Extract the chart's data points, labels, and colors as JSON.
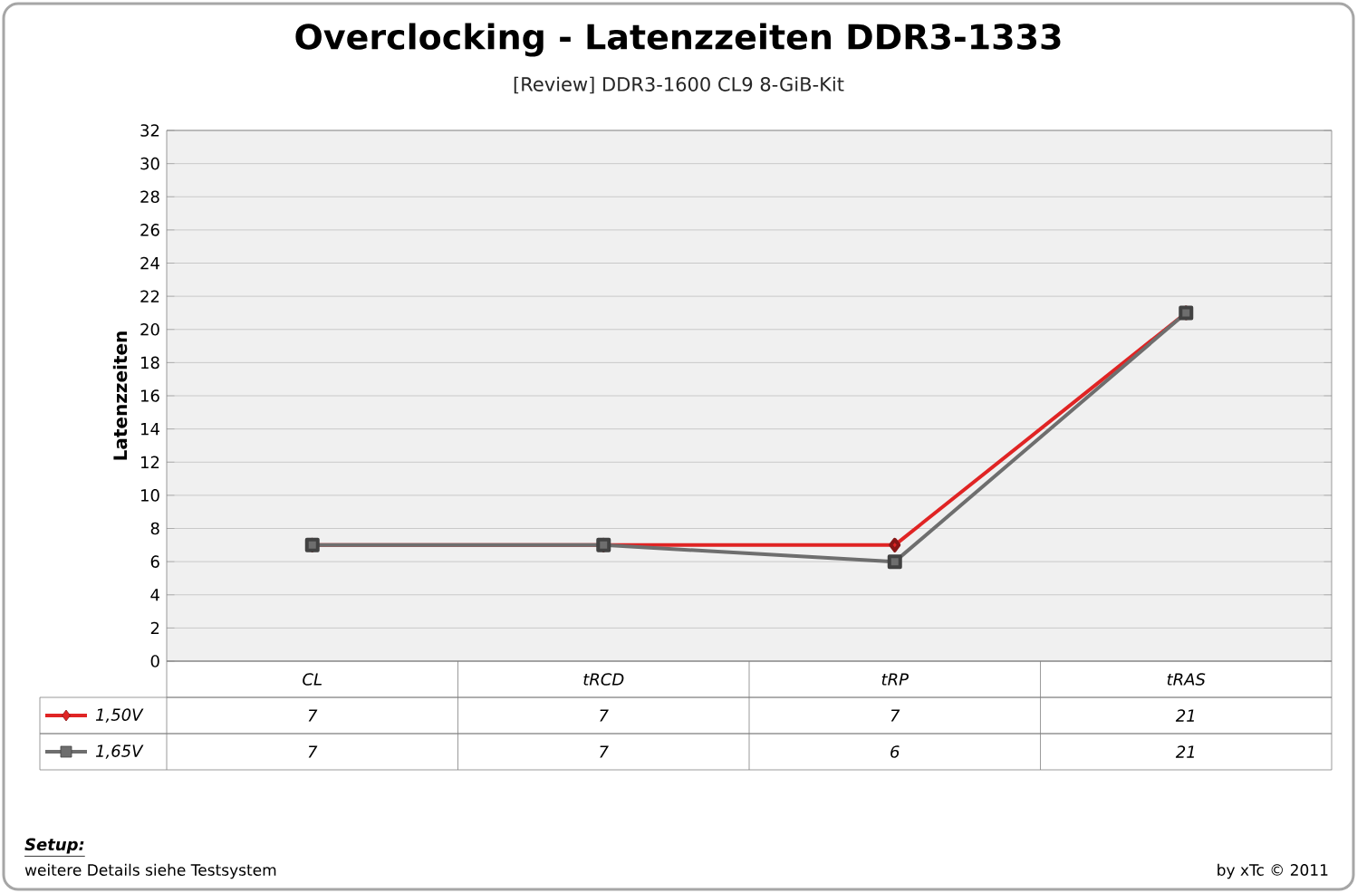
{
  "chart_data": {
    "type": "line",
    "title": "Overclocking - Latenzzeiten DDR3-1333",
    "subtitle": "[Review] DDR3-1600 CL9 8-GiB-Kit",
    "ylabel": "Latenzzeiten",
    "categories": [
      "CL",
      "tRCD",
      "tRP",
      "tRAS"
    ],
    "series": [
      {
        "name": "1,50V",
        "color": "#e02424",
        "values": [
          7,
          7,
          7,
          21
        ],
        "marker": "diamond"
      },
      {
        "name": "1,65V",
        "color": "#6e6e6e",
        "values": [
          7,
          7,
          6,
          21
        ],
        "marker": "square"
      }
    ],
    "ylim": [
      0,
      32
    ],
    "yticks": [
      0,
      2,
      4,
      6,
      8,
      10,
      12,
      14,
      16,
      18,
      20,
      22,
      24,
      26,
      28,
      30,
      32
    ],
    "grid": "y",
    "legend": "bottom left",
    "data_labels": true,
    "line_style": "solid",
    "annotations": [
      "Setup:",
      "weitere Details siehe Testsystem",
      "by xTc © 2011"
    ]
  }
}
